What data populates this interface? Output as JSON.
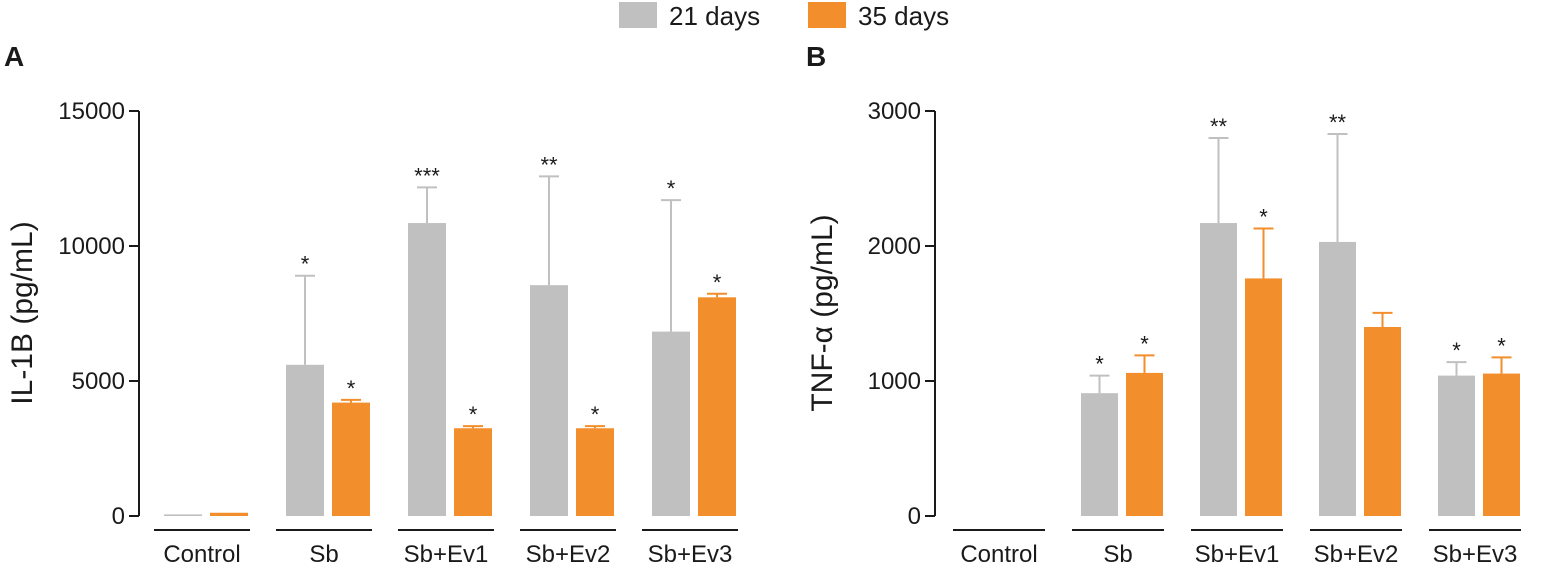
{
  "legend": {
    "items": [
      {
        "label": "21 days",
        "color": "#c0c0c0"
      },
      {
        "label": "35 days",
        "color": "#f28e2b"
      }
    ]
  },
  "colors": {
    "day21": "#c0c0c0",
    "day35": "#f28e2b",
    "axis": "#1a1a1a"
  },
  "chart_data": [
    {
      "type": "bar",
      "panel_label": "A",
      "ylabel": "IL-1B (pg/mL)",
      "xlabel": "",
      "ylim": [
        0,
        15000
      ],
      "yticks": [
        0,
        5000,
        10000,
        15000
      ],
      "ytick_labels": [
        "0",
        "5000",
        "10000",
        "15000"
      ],
      "categories": [
        "Control",
        "Sb",
        "Sb+Ev1",
        "Sb+Ev2",
        "Sb+Ev3"
      ],
      "series": [
        {
          "name": "21 days",
          "values": [
            60,
            5600,
            10850,
            8550,
            6830
          ],
          "errors": [
            0,
            3300,
            1320,
            4030,
            4870
          ],
          "stars": [
            "",
            "*",
            "***",
            "**",
            "*"
          ]
        },
        {
          "name": "35 days",
          "values": [
            120,
            4200,
            3250,
            3250,
            8100
          ],
          "errors": [
            0,
            100,
            80,
            80,
            130
          ],
          "stars": [
            "",
            "*",
            "*",
            "*",
            "*"
          ]
        }
      ]
    },
    {
      "type": "bar",
      "panel_label": "B",
      "ylabel": "TNF-α (pg/mL)",
      "xlabel": "",
      "ylim": [
        0,
        3000
      ],
      "yticks": [
        0,
        1000,
        2000,
        3000
      ],
      "ytick_labels": [
        "0",
        "1000",
        "2000",
        "3000"
      ],
      "categories": [
        "Control",
        "Sb",
        "Sb+Ev1",
        "Sb+Ev2",
        "Sb+Ev3"
      ],
      "series": [
        {
          "name": "21 days",
          "values": [
            0,
            910,
            2170,
            2030,
            1040
          ],
          "errors": [
            0,
            130,
            630,
            800,
            100
          ],
          "stars": [
            "",
            "*",
            "**",
            "**",
            "*"
          ]
        },
        {
          "name": "35 days",
          "values": [
            0,
            1060,
            1760,
            1400,
            1055
          ],
          "errors": [
            0,
            130,
            370,
            105,
            120
          ],
          "stars": [
            "",
            "*",
            "*",
            "",
            "*"
          ]
        }
      ]
    }
  ]
}
